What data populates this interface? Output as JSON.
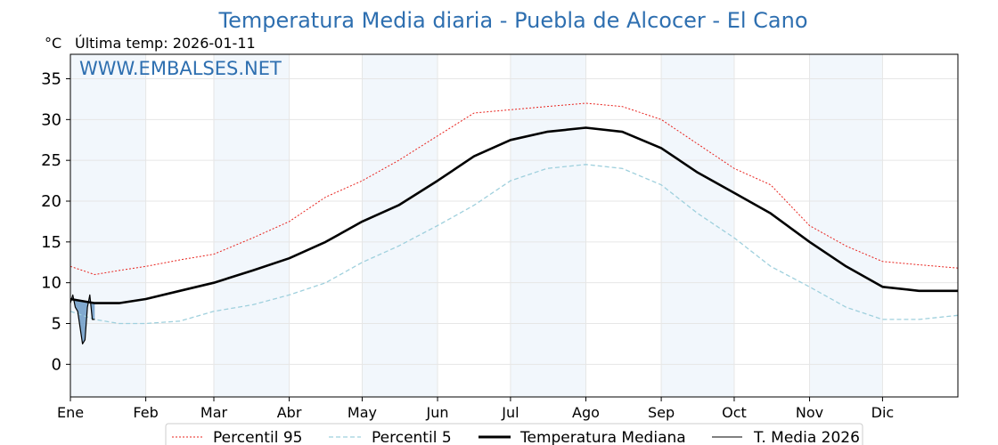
{
  "chart_data": {
    "type": "line",
    "title": "Temperatura Media diaria - Puebla de Alcocer - El Cano",
    "unit_label": "°C",
    "last_temp_label": "Última temp: 2026-01-11",
    "watermark": "WWW.EMBALSES.NET",
    "ylim": [
      -4,
      38
    ],
    "yticks": [
      0,
      5,
      10,
      15,
      20,
      25,
      30,
      35
    ],
    "x_range_days": [
      0,
      365
    ],
    "months": [
      {
        "label": "Ene",
        "day": 0
      },
      {
        "label": "Feb",
        "day": 31
      },
      {
        "label": "Mar",
        "day": 59
      },
      {
        "label": "Abr",
        "day": 90
      },
      {
        "label": "May",
        "day": 120
      },
      {
        "label": "Jun",
        "day": 151
      },
      {
        "label": "Jul",
        "day": 181
      },
      {
        "label": "Ago",
        "day": 212
      },
      {
        "label": "Sep",
        "day": 243
      },
      {
        "label": "Oct",
        "day": 273
      },
      {
        "label": "Nov",
        "day": 304
      },
      {
        "label": "Dic",
        "day": 334
      }
    ],
    "grid": true,
    "legend_position": "bottom",
    "series": [
      {
        "name": "Percentil 95",
        "color": "#e8231e",
        "style": "dotted",
        "x": [
          0,
          10,
          20,
          31,
          45,
          59,
          75,
          90,
          105,
          120,
          135,
          151,
          166,
          181,
          196,
          212,
          227,
          243,
          258,
          273,
          288,
          304,
          319,
          334,
          349,
          365
        ],
        "y": [
          12.0,
          11.0,
          11.5,
          12.0,
          12.8,
          13.5,
          15.5,
          17.5,
          20.5,
          22.5,
          25.0,
          28.0,
          30.8,
          31.2,
          31.6,
          32.0,
          31.6,
          30.0,
          27.0,
          24.0,
          22.0,
          17.0,
          14.5,
          12.6,
          12.2,
          11.8
        ]
      },
      {
        "name": "Percentil 5",
        "color": "#9fd0dd",
        "style": "dashed",
        "x": [
          0,
          10,
          20,
          31,
          45,
          59,
          75,
          90,
          105,
          120,
          135,
          151,
          166,
          181,
          196,
          212,
          227,
          243,
          258,
          273,
          288,
          304,
          319,
          334,
          349,
          365
        ],
        "y": [
          6.5,
          5.5,
          5.0,
          5.0,
          5.3,
          6.5,
          7.3,
          8.5,
          10.0,
          12.5,
          14.5,
          17.0,
          19.5,
          22.5,
          24.0,
          24.5,
          24.0,
          22.0,
          18.5,
          15.5,
          12.0,
          9.5,
          7.0,
          5.5,
          5.5,
          6.0
        ]
      },
      {
        "name": "Temperatura Mediana",
        "color": "#000000",
        "style": "solid-bold",
        "x": [
          0,
          10,
          20,
          31,
          45,
          59,
          75,
          90,
          105,
          120,
          135,
          151,
          166,
          181,
          196,
          212,
          227,
          243,
          258,
          273,
          288,
          304,
          319,
          334,
          349,
          365
        ],
        "y": [
          8.0,
          7.5,
          7.5,
          8.0,
          9.0,
          10.0,
          11.5,
          13.0,
          15.0,
          17.5,
          19.5,
          22.5,
          25.5,
          27.5,
          28.5,
          29.0,
          28.5,
          26.5,
          23.5,
          21.0,
          18.5,
          15.0,
          12.0,
          9.5,
          9.0,
          9.0
        ]
      },
      {
        "name": "T. Media 2026",
        "color": "#000000",
        "style": "solid-thin",
        "x": [
          0,
          1,
          2,
          3,
          4,
          5,
          6,
          7,
          8,
          9,
          10
        ],
        "y": [
          7.5,
          8.5,
          7.0,
          6.5,
          4.5,
          2.5,
          3.0,
          7.0,
          8.5,
          5.5,
          5.5
        ]
      }
    ]
  }
}
